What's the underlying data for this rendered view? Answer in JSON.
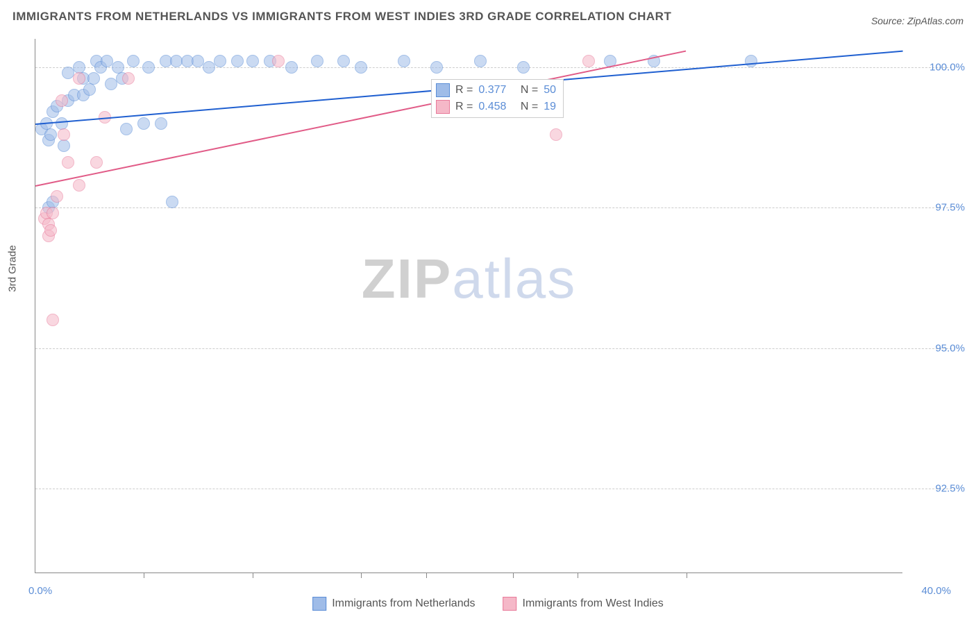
{
  "title": "IMMIGRANTS FROM NETHERLANDS VS IMMIGRANTS FROM WEST INDIES 3RD GRADE CORRELATION CHART",
  "source": "Source: ZipAtlas.com",
  "watermark": {
    "zip": "ZIP",
    "atlas": "atlas"
  },
  "y_axis_title": "3rd Grade",
  "chart": {
    "type": "scatter",
    "background_color": "#ffffff",
    "grid_color": "#cccccc",
    "axis_color": "#888888",
    "xlim": [
      0,
      40
    ],
    "ylim": [
      91.0,
      100.5
    ],
    "x_ticks_major": [
      0,
      40
    ],
    "x_tick_labels": [
      "0.0%",
      "40.0%"
    ],
    "x_ticks_minor": [
      5,
      10,
      15,
      18,
      22,
      25,
      30
    ],
    "y_ticks": [
      92.5,
      95.0,
      97.5,
      100.0
    ],
    "y_tick_labels": [
      "92.5%",
      "95.0%",
      "97.5%",
      "100.0%"
    ],
    "marker_radius": 9,
    "marker_opacity": 0.55,
    "series": [
      {
        "name": "Immigrants from Netherlands",
        "color_fill": "#9fbce8",
        "color_stroke": "#5b8dd6",
        "trend_color": "#1f5fd0",
        "R": "0.377",
        "N": "50",
        "trend": {
          "x1": 0,
          "y1": 99.0,
          "x2": 40,
          "y2": 100.3
        },
        "points": [
          [
            0.3,
            98.9
          ],
          [
            0.5,
            99.0
          ],
          [
            0.6,
            98.7
          ],
          [
            0.7,
            98.8
          ],
          [
            0.8,
            99.2
          ],
          [
            0.6,
            97.5
          ],
          [
            0.8,
            97.6
          ],
          [
            1.0,
            99.3
          ],
          [
            1.2,
            99.0
          ],
          [
            1.3,
            98.6
          ],
          [
            1.5,
            99.4
          ],
          [
            1.5,
            99.9
          ],
          [
            1.8,
            99.5
          ],
          [
            2.0,
            100.0
          ],
          [
            2.2,
            99.5
          ],
          [
            2.2,
            99.8
          ],
          [
            2.5,
            99.6
          ],
          [
            2.7,
            99.8
          ],
          [
            2.8,
            100.1
          ],
          [
            3.0,
            100.0
          ],
          [
            3.3,
            100.1
          ],
          [
            3.5,
            99.7
          ],
          [
            3.8,
            100.0
          ],
          [
            4.0,
            99.8
          ],
          [
            4.5,
            100.1
          ],
          [
            4.2,
            98.9
          ],
          [
            5.0,
            99.0
          ],
          [
            5.2,
            100.0
          ],
          [
            5.8,
            99.0
          ],
          [
            6.0,
            100.1
          ],
          [
            6.3,
            97.6
          ],
          [
            6.5,
            100.1
          ],
          [
            7.0,
            100.1
          ],
          [
            7.5,
            100.1
          ],
          [
            8.0,
            100.0
          ],
          [
            8.5,
            100.1
          ],
          [
            9.3,
            100.1
          ],
          [
            10.0,
            100.1
          ],
          [
            10.8,
            100.1
          ],
          [
            11.8,
            100.0
          ],
          [
            13.0,
            100.1
          ],
          [
            14.2,
            100.1
          ],
          [
            15.0,
            100.0
          ],
          [
            17.0,
            100.1
          ],
          [
            18.5,
            100.0
          ],
          [
            20.5,
            100.1
          ],
          [
            22.5,
            100.0
          ],
          [
            26.5,
            100.1
          ],
          [
            28.5,
            100.1
          ],
          [
            33.0,
            100.1
          ]
        ]
      },
      {
        "name": "Immigrants from West Indies",
        "color_fill": "#f5b8c8",
        "color_stroke": "#e87a9a",
        "trend_color": "#e15b87",
        "R": "0.458",
        "N": "19",
        "trend": {
          "x1": 0,
          "y1": 97.9,
          "x2": 30,
          "y2": 100.3
        },
        "points": [
          [
            0.4,
            97.3
          ],
          [
            0.5,
            97.4
          ],
          [
            0.6,
            97.0
          ],
          [
            0.6,
            97.2
          ],
          [
            0.7,
            97.1
          ],
          [
            0.8,
            97.4
          ],
          [
            1.0,
            97.7
          ],
          [
            0.8,
            95.5
          ],
          [
            1.2,
            99.4
          ],
          [
            1.3,
            98.8
          ],
          [
            1.5,
            98.3
          ],
          [
            2.0,
            97.9
          ],
          [
            2.0,
            99.8
          ],
          [
            2.8,
            98.3
          ],
          [
            3.2,
            99.1
          ],
          [
            4.3,
            99.8
          ],
          [
            11.2,
            100.1
          ],
          [
            24.0,
            98.8
          ],
          [
            25.5,
            100.1
          ]
        ]
      }
    ]
  },
  "r_legend": {
    "R_label": "R =",
    "N_label": "N ="
  },
  "bottom_legend": [
    {
      "label": "Immigrants from Netherlands",
      "fill": "#9fbce8",
      "stroke": "#5b8dd6"
    },
    {
      "label": "Immigrants from West Indies",
      "fill": "#f5b8c8",
      "stroke": "#e87a9a"
    }
  ]
}
